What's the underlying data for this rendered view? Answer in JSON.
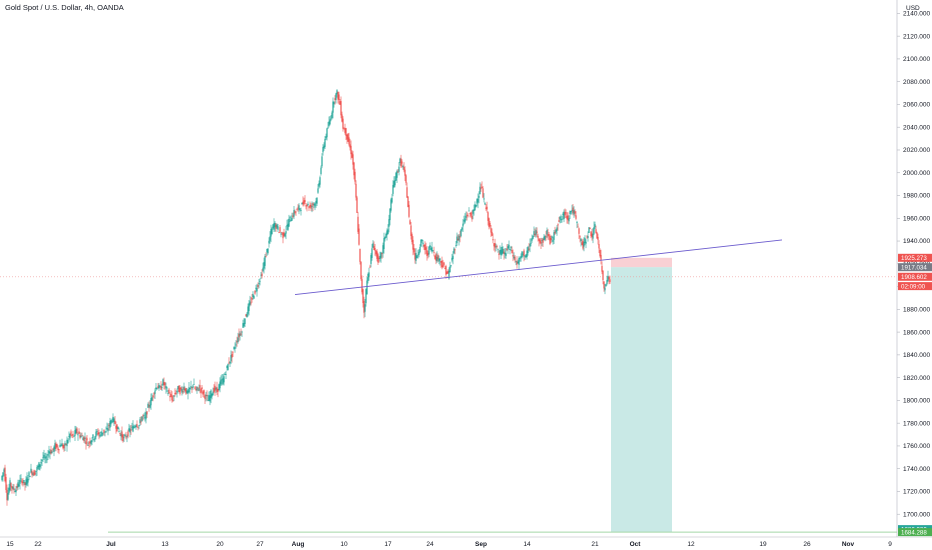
{
  "header": {
    "title": "Gold Spot / U.S. Dollar, 4h, OANDA"
  },
  "axis": {
    "currency": "USD"
  },
  "colors": {
    "up": "#26a69a",
    "down": "#ef5350",
    "trendline": "#6a5acd",
    "target_zone": "#b2dfdb",
    "stop_zone": "#f8c8cc",
    "support_line": "#a5d6a7"
  },
  "chart_data": {
    "type": "candlestick",
    "ylim": [
      1680,
      2150
    ],
    "y_ticks": [
      2140,
      2120,
      2100,
      2080,
      2060,
      2040,
      2020,
      2000,
      1980,
      1960,
      1940,
      1920,
      1900,
      1880,
      1860,
      1840,
      1820,
      1800,
      1780,
      1760,
      1740,
      1720,
      1700
    ],
    "y_tick_labels": [
      "2140.000",
      "2120.000",
      "2100.000",
      "2080.000",
      "2060.000",
      "2040.000",
      "2020.000",
      "2000.000",
      "1980.000",
      "1960.000",
      "1940.000",
      "1920.000",
      "1900.000",
      "1880.000",
      "1860.000",
      "1840.000",
      "1820.000",
      "1800.000",
      "1780.000",
      "1760.000",
      "1740.000",
      "1720.000",
      "1700.000"
    ],
    "x_ticks": [
      {
        "label": "15",
        "bold": false
      },
      {
        "label": "22",
        "bold": false
      },
      {
        "label": "Jul",
        "bold": true
      },
      {
        "label": "13",
        "bold": false
      },
      {
        "label": "20",
        "bold": false
      },
      {
        "label": "27",
        "bold": false
      },
      {
        "label": "Aug",
        "bold": true
      },
      {
        "label": "10",
        "bold": false
      },
      {
        "label": "17",
        "bold": false
      },
      {
        "label": "24",
        "bold": false
      },
      {
        "label": "Sep",
        "bold": true
      },
      {
        "label": "14",
        "bold": false
      },
      {
        "label": "21",
        "bold": false
      },
      {
        "label": "Oct",
        "bold": true
      },
      {
        "label": "12",
        "bold": false
      },
      {
        "label": "19",
        "bold": false
      },
      {
        "label": "26",
        "bold": false
      },
      {
        "label": "Nov",
        "bold": true
      },
      {
        "label": "9",
        "bold": false
      }
    ],
    "series_path": [
      [
        0,
        1730
      ],
      [
        3,
        1740
      ],
      [
        6,
        1715
      ],
      [
        9,
        1727
      ],
      [
        12,
        1722
      ],
      [
        15,
        1722
      ],
      [
        18,
        1728
      ],
      [
        21,
        1730
      ],
      [
        24,
        1726
      ],
      [
        27,
        1733
      ],
      [
        30,
        1738
      ],
      [
        33,
        1736
      ],
      [
        36,
        1740
      ],
      [
        39,
        1745
      ],
      [
        42,
        1750
      ],
      [
        45,
        1748
      ],
      [
        48,
        1756
      ],
      [
        51,
        1755
      ],
      [
        54,
        1760
      ],
      [
        57,
        1758
      ],
      [
        60,
        1762
      ],
      [
        63,
        1758
      ],
      [
        66,
        1764
      ],
      [
        69,
        1770
      ],
      [
        72,
        1768
      ],
      [
        75,
        1773
      ],
      [
        78,
        1770
      ],
      [
        81,
        1768
      ],
      [
        84,
        1766
      ],
      [
        87,
        1762
      ],
      [
        90,
        1766
      ],
      [
        93,
        1768
      ],
      [
        96,
        1772
      ],
      [
        99,
        1770
      ],
      [
        102,
        1773
      ],
      [
        105,
        1772
      ],
      [
        108,
        1778
      ],
      [
        111,
        1784
      ],
      [
        114,
        1780
      ],
      [
        117,
        1774
      ],
      [
        120,
        1770
      ],
      [
        123,
        1766
      ],
      [
        126,
        1770
      ],
      [
        129,
        1774
      ],
      [
        132,
        1776
      ],
      [
        135,
        1780
      ],
      [
        138,
        1778
      ],
      [
        141,
        1786
      ],
      [
        144,
        1784
      ],
      [
        147,
        1794
      ],
      [
        150,
        1800
      ],
      [
        153,
        1808
      ],
      [
        156,
        1813
      ],
      [
        159,
        1810
      ],
      [
        162,
        1816
      ],
      [
        165,
        1810
      ],
      [
        168,
        1806
      ],
      [
        171,
        1800
      ],
      [
        174,
        1806
      ],
      [
        177,
        1810
      ],
      [
        180,
        1808
      ],
      [
        183,
        1812
      ],
      [
        186,
        1806
      ],
      [
        189,
        1810
      ],
      [
        192,
        1814
      ],
      [
        195,
        1808
      ],
      [
        198,
        1812
      ],
      [
        201,
        1808
      ],
      [
        204,
        1804
      ],
      [
        207,
        1800
      ],
      [
        210,
        1806
      ],
      [
        213,
        1810
      ],
      [
        216,
        1808
      ],
      [
        219,
        1815
      ],
      [
        222,
        1818
      ],
      [
        225,
        1826
      ],
      [
        228,
        1834
      ],
      [
        231,
        1840
      ],
      [
        234,
        1848
      ],
      [
        237,
        1856
      ],
      [
        240,
        1860
      ],
      [
        243,
        1870
      ],
      [
        246,
        1878
      ],
      [
        249,
        1885
      ],
      [
        252,
        1892
      ],
      [
        255,
        1898
      ],
      [
        258,
        1905
      ],
      [
        261,
        1912
      ],
      [
        264,
        1925
      ],
      [
        267,
        1935
      ],
      [
        270,
        1948
      ],
      [
        273,
        1955
      ],
      [
        276,
        1952
      ],
      [
        279,
        1948
      ],
      [
        282,
        1945
      ],
      [
        285,
        1950
      ],
      [
        288,
        1958
      ],
      [
        291,
        1962
      ],
      [
        294,
        1966
      ],
      [
        297,
        1968
      ],
      [
        300,
        1970
      ],
      [
        303,
        1975
      ],
      [
        306,
        1972
      ],
      [
        309,
        1970
      ],
      [
        312,
        1972
      ],
      [
        315,
        1975
      ],
      [
        318,
        1990
      ],
      [
        321,
        2015
      ],
      [
        324,
        2030
      ],
      [
        327,
        2040
      ],
      [
        330,
        2050
      ],
      [
        333,
        2065
      ],
      [
        336,
        2070
      ],
      [
        339,
        2060
      ],
      [
        342,
        2040
      ],
      [
        345,
        2035
      ],
      [
        348,
        2025
      ],
      [
        351,
        2015
      ],
      [
        354,
        1990
      ],
      [
        357,
        1950
      ],
      [
        360,
        1905
      ],
      [
        363,
        1878
      ],
      [
        366,
        1905
      ],
      [
        369,
        1920
      ],
      [
        372,
        1938
      ],
      [
        375,
        1928
      ],
      [
        378,
        1922
      ],
      [
        381,
        1930
      ],
      [
        384,
        1945
      ],
      [
        387,
        1950
      ],
      [
        390,
        1975
      ],
      [
        393,
        1992
      ],
      [
        396,
        2000
      ],
      [
        399,
        2010
      ],
      [
        402,
        2005
      ],
      [
        405,
        1990
      ],
      [
        408,
        1960
      ],
      [
        411,
        1940
      ],
      [
        414,
        1925
      ],
      [
        417,
        1930
      ],
      [
        420,
        1940
      ],
      [
        423,
        1935
      ],
      [
        426,
        1928
      ],
      [
        429,
        1935
      ],
      [
        432,
        1932
      ],
      [
        435,
        1925
      ],
      [
        438,
        1925
      ],
      [
        441,
        1920
      ],
      [
        444,
        1915
      ],
      [
        447,
        1910
      ],
      [
        450,
        1920
      ],
      [
        453,
        1932
      ],
      [
        456,
        1942
      ],
      [
        459,
        1945
      ],
      [
        462,
        1955
      ],
      [
        465,
        1962
      ],
      [
        468,
        1965
      ],
      [
        471,
        1962
      ],
      [
        474,
        1970
      ],
      [
        477,
        1980
      ],
      [
        480,
        1988
      ],
      [
        483,
        1975
      ],
      [
        486,
        1965
      ],
      [
        489,
        1950
      ],
      [
        492,
        1940
      ],
      [
        495,
        1935
      ],
      [
        498,
        1928
      ],
      [
        501,
        1932
      ],
      [
        504,
        1928
      ],
      [
        507,
        1935
      ],
      [
        510,
        1932
      ],
      [
        513,
        1925
      ],
      [
        516,
        1920
      ],
      [
        519,
        1924
      ],
      [
        522,
        1930
      ],
      [
        525,
        1926
      ],
      [
        528,
        1935
      ],
      [
        531,
        1942
      ],
      [
        534,
        1948
      ],
      [
        537,
        1945
      ],
      [
        540,
        1938
      ],
      [
        543,
        1942
      ],
      [
        546,
        1948
      ],
      [
        549,
        1940
      ],
      [
        552,
        1942
      ],
      [
        555,
        1952
      ],
      [
        558,
        1958
      ],
      [
        561,
        1960
      ],
      [
        564,
        1965
      ],
      [
        567,
        1960
      ],
      [
        570,
        1968
      ],
      [
        573,
        1965
      ],
      [
        576,
        1955
      ],
      [
        579,
        1942
      ],
      [
        582,
        1935
      ],
      [
        585,
        1942
      ],
      [
        588,
        1950
      ],
      [
        591,
        1945
      ],
      [
        594,
        1952
      ],
      [
        597,
        1940
      ],
      [
        600,
        1920
      ],
      [
        603,
        1898
      ],
      [
        606,
        1908
      ],
      [
        609,
        1905
      ]
    ],
    "trendline": {
      "x1_bar": 293,
      "y1": 1893,
      "x2_bar": 780,
      "y2": 1941
    },
    "position": {
      "x_start_bar": 609,
      "x_end_bar": 670,
      "stop": 1925.273,
      "entry": 1917.034,
      "target": 1684.288
    },
    "support_line_price": 1684.288,
    "current_price_line": 1908.602,
    "price_tags": [
      {
        "price": 1925.273,
        "label": "1925.273",
        "color": "#ef5350"
      },
      {
        "price": 1917.034,
        "label": "1917.034",
        "color": "#787b86"
      },
      {
        "price": 1908.602,
        "label": "1908.602",
        "color": "#ef5350"
      },
      {
        "price": 1900.4,
        "label": "02:09:00",
        "color": "#ef5350"
      },
      {
        "price": 1686.92,
        "label": "1686.920",
        "color": "#26a69a"
      },
      {
        "price": 1684.288,
        "label": "1684.288",
        "color": "#4caf50"
      }
    ]
  }
}
